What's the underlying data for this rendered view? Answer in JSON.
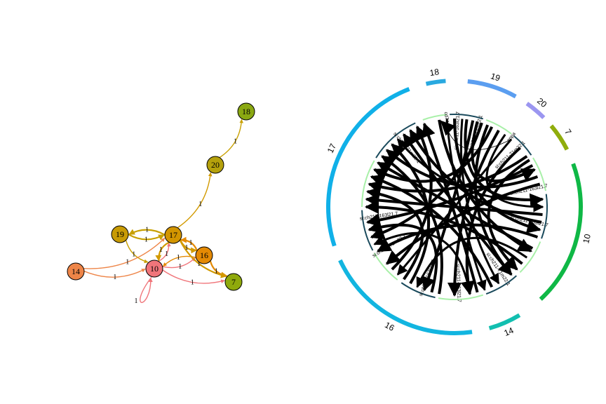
{
  "network": {
    "nodes": [
      {
        "id": "18",
        "label": "18",
        "color": "#8aa812"
      },
      {
        "id": "20",
        "label": "20",
        "color": "#b5a10c"
      },
      {
        "id": "19",
        "label": "19",
        "color": "#c89b05"
      },
      {
        "id": "17",
        "label": "17",
        "color": "#d29500"
      },
      {
        "id": "14",
        "label": "14",
        "color": "#ee8548"
      },
      {
        "id": "10",
        "label": "10",
        "color": "#f0757a"
      },
      {
        "id": "16",
        "label": "16",
        "color": "#e48a04"
      },
      {
        "id": "7",
        "label": "7",
        "color": "#8fa90c"
      }
    ],
    "edges": [
      {
        "from": "20",
        "to": "18",
        "label": "1",
        "color": "#c8a000",
        "width": 1.4
      },
      {
        "from": "17",
        "to": "20",
        "label": "1",
        "color": "#d29a00",
        "width": 1.4
      },
      {
        "from": "19",
        "to": "17",
        "label": "1",
        "color": "#c8a000",
        "width": 2.2
      },
      {
        "from": "17",
        "to": "19",
        "label": "1",
        "color": "#c8a000",
        "width": 2.2
      },
      {
        "from": "19",
        "to": "10",
        "label": "1",
        "color": "#c8a000",
        "width": 1.4
      },
      {
        "from": "14",
        "to": "17",
        "label": "1",
        "color": "#ee8548",
        "width": 1.4
      },
      {
        "from": "14",
        "to": "10",
        "label": "1",
        "color": "#ee8548",
        "width": 1.4
      },
      {
        "from": "10",
        "to": "17",
        "label": "1",
        "color": "#f0757a",
        "width": 1.4
      },
      {
        "from": "17",
        "to": "10",
        "label": "1",
        "color": "#d29a00",
        "width": 2.2
      },
      {
        "from": "17",
        "to": "16",
        "label": "1",
        "color": "#d29a00",
        "width": 2.2
      },
      {
        "from": "16",
        "to": "17",
        "label": "1",
        "color": "#e48a04",
        "width": 2.2
      },
      {
        "from": "10",
        "to": "16",
        "label": "1",
        "color": "#f0757a",
        "width": 1.4
      },
      {
        "from": "16",
        "to": "10",
        "label": "1",
        "color": "#e48a04",
        "width": 1.4
      },
      {
        "from": "16",
        "to": "7",
        "label": "1",
        "color": "#e48a04",
        "width": 2.2
      },
      {
        "from": "17",
        "to": "7",
        "label": "1",
        "color": "#d29a00",
        "width": 2.2
      },
      {
        "from": "10",
        "to": "7",
        "label": "1",
        "color": "#f0757a",
        "width": 1.4
      },
      {
        "from": "10",
        "to": "10",
        "label": "1",
        "color": "#f0757a",
        "width": 1.4
      }
    ]
  },
  "chord": {
    "sectors": [
      {
        "label": "18",
        "color": "#29a9e0"
      },
      {
        "label": "19",
        "color": "#5b9ef0"
      },
      {
        "label": "20",
        "color": "#9b96f0"
      },
      {
        "label": "7",
        "color": "#90ad0c"
      },
      {
        "label": "10",
        "color": "#0fb846"
      },
      {
        "label": "14",
        "color": "#12bfb0"
      },
      {
        "label": "16",
        "color": "#12b5e0"
      },
      {
        "label": "17",
        "color": "#10b0e8"
      }
    ],
    "gene_labels": [
      "cd74a",
      "si:ch211-163l21.7",
      "si:ch211-71m22.1",
      "appa",
      "si:ch211-71m22.1",
      "si:ch211-163l21.7",
      "si:ch211-163l21.7",
      "si:ch211-71m22.1",
      "si:ch211-163l21.7",
      "si:ch211-163l21.7",
      "si:ch211-71m22.1",
      "si:ch211-163l21.7",
      "si:ch211-71m22.1"
    ],
    "colors": {
      "inner_light": "#a8f0a8",
      "inner_dark": "#1a4a5c",
      "links": "#000000"
    }
  }
}
